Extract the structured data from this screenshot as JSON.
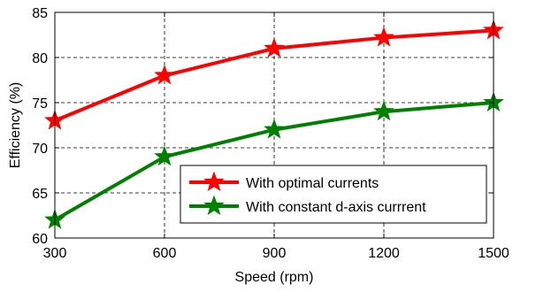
{
  "chart_data": {
    "type": "line",
    "title": "",
    "xlabel": "Speed (rpm)",
    "ylabel": "Efficiency (%)",
    "x": [
      300,
      600,
      900,
      1200,
      1500
    ],
    "xlim": [
      300,
      1500
    ],
    "ylim": [
      60,
      85
    ],
    "xticks": [
      300,
      600,
      900,
      1200,
      1500
    ],
    "yticks": [
      60,
      65,
      70,
      75,
      80,
      85
    ],
    "grid": true,
    "legend_position": "lower-right",
    "series": [
      {
        "name": "With optimal currents",
        "color": "#ff0000",
        "marker": "star",
        "values": [
          73,
          78,
          81,
          82.2,
          83
        ]
      },
      {
        "name": "With constant d-axis currrent",
        "color": "#008000",
        "marker": "star",
        "values": [
          62,
          69,
          72,
          74,
          75
        ]
      }
    ]
  }
}
